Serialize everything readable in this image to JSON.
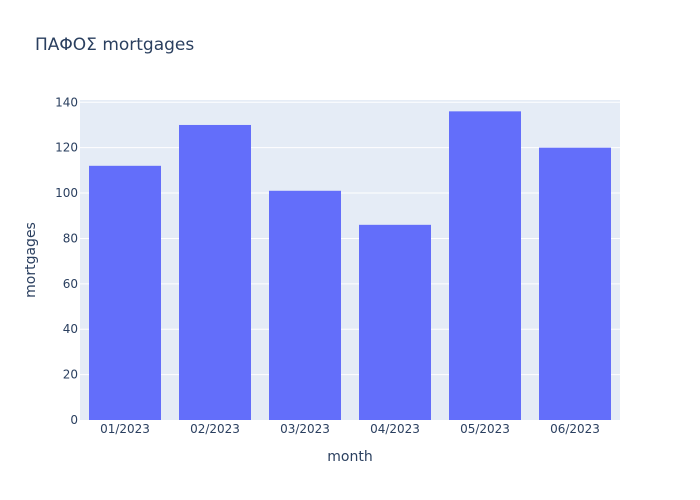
{
  "chart_data": {
    "type": "bar",
    "title": "ΠΑΦΟΣ mortgages",
    "xlabel": "month",
    "ylabel": "mortgages",
    "categories": [
      "01/2023",
      "02/2023",
      "03/2023",
      "04/2023",
      "05/2023",
      "06/2023"
    ],
    "values": [
      112,
      130,
      101,
      86,
      136,
      120
    ],
    "ylim": [
      0,
      141
    ],
    "yticks": [
      0,
      20,
      40,
      60,
      80,
      100,
      120,
      140
    ],
    "grid": true,
    "colors": {
      "bar": "#636efa",
      "plot_background": "#e5ecf6",
      "grid": "#ffffff",
      "text": "#2a3f5f"
    }
  }
}
